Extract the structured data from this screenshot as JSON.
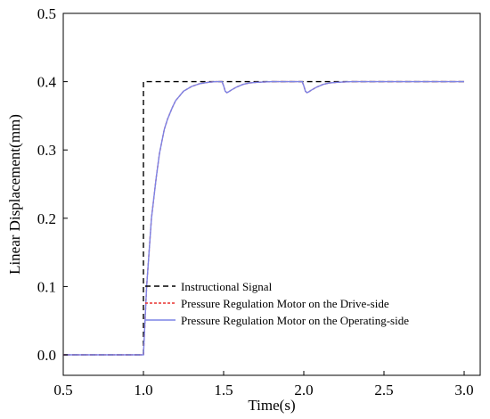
{
  "chart_data": {
    "type": "line",
    "xlabel": "Time(s)",
    "ylabel": "Linear Displacement(mm)",
    "xlim": [
      0.5,
      3.1
    ],
    "ylim": [
      -0.03,
      0.5
    ],
    "xticks": [
      "0.5",
      "1.0",
      "1.5",
      "2.0",
      "2.5",
      "3.0"
    ],
    "yticks": [
      "0.0",
      "0.1",
      "0.2",
      "0.3",
      "0.4",
      "0.5"
    ],
    "legend_position": "bottom-left",
    "grid": false,
    "series": [
      {
        "name": "Instructional Signal",
        "color": "#000000",
        "style": "dashed",
        "x": [
          0.5,
          1.0,
          1.0,
          3.0
        ],
        "y": [
          0.0,
          0.0,
          0.4,
          0.4
        ]
      },
      {
        "name": "Pressure Regulation Motor on the Drive-side",
        "color": "#e8312f",
        "style": "dashed",
        "x": [
          0.5,
          1.0,
          1.02,
          1.05,
          1.08,
          1.1,
          1.13,
          1.15,
          1.18,
          1.2,
          1.25,
          1.3,
          1.35,
          1.4,
          1.45,
          1.49,
          1.5,
          1.51,
          1.52,
          1.53,
          1.55,
          1.58,
          1.62,
          1.66,
          1.7,
          1.8,
          1.9,
          1.99,
          2.0,
          2.01,
          2.02,
          2.03,
          2.05,
          2.08,
          2.12,
          2.16,
          2.2,
          2.3,
          2.5,
          2.75,
          3.0
        ],
        "y": [
          0.0,
          0.0,
          0.1,
          0.2,
          0.26,
          0.295,
          0.33,
          0.345,
          0.362,
          0.372,
          0.386,
          0.393,
          0.397,
          0.399,
          0.4,
          0.4,
          0.394,
          0.386,
          0.384,
          0.385,
          0.388,
          0.392,
          0.396,
          0.398,
          0.399,
          0.4,
          0.4,
          0.4,
          0.394,
          0.386,
          0.384,
          0.385,
          0.388,
          0.392,
          0.396,
          0.398,
          0.399,
          0.4,
          0.4,
          0.4,
          0.4
        ]
      },
      {
        "name": "Pressure Regulation Motor on the Operating-side",
        "color": "#7b83e6",
        "style": "solid",
        "x": [
          0.5,
          1.0,
          1.02,
          1.05,
          1.08,
          1.1,
          1.13,
          1.15,
          1.18,
          1.2,
          1.25,
          1.3,
          1.35,
          1.4,
          1.45,
          1.49,
          1.5,
          1.51,
          1.52,
          1.53,
          1.55,
          1.58,
          1.62,
          1.66,
          1.7,
          1.8,
          1.9,
          1.99,
          2.0,
          2.01,
          2.02,
          2.03,
          2.05,
          2.08,
          2.12,
          2.16,
          2.2,
          2.3,
          2.5,
          2.75,
          3.0
        ],
        "y": [
          0.0,
          0.0,
          0.1,
          0.2,
          0.26,
          0.295,
          0.33,
          0.345,
          0.362,
          0.372,
          0.386,
          0.393,
          0.397,
          0.399,
          0.4,
          0.4,
          0.394,
          0.386,
          0.384,
          0.385,
          0.388,
          0.392,
          0.396,
          0.398,
          0.399,
          0.4,
          0.4,
          0.4,
          0.394,
          0.386,
          0.384,
          0.385,
          0.388,
          0.392,
          0.396,
          0.398,
          0.399,
          0.4,
          0.4,
          0.4,
          0.4
        ]
      }
    ]
  }
}
